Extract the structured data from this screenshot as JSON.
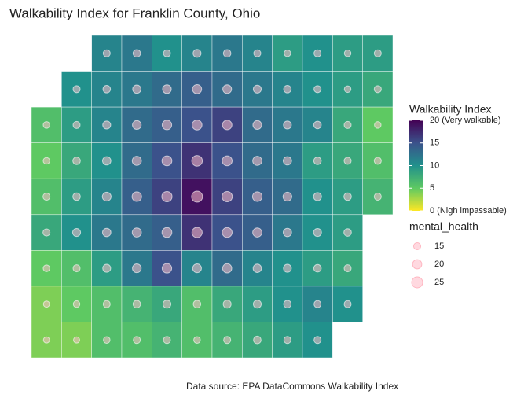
{
  "title": "Walkability Index for Franklin County, Ohio",
  "caption": "Data source: EPA DataCommons Walkability Index",
  "map": {
    "walkability": [
      [
        null,
        null,
        11,
        12,
        10,
        11,
        12,
        11,
        9,
        10,
        9,
        9
      ],
      [
        null,
        10,
        11,
        12,
        13,
        14,
        13,
        12,
        11,
        10,
        9,
        8
      ],
      [
        6,
        9,
        11,
        13,
        14,
        15,
        16,
        13,
        12,
        11,
        8,
        5
      ],
      [
        5,
        8,
        10,
        13,
        15,
        17,
        15,
        13,
        12,
        9,
        8,
        6
      ],
      [
        6,
        9,
        11,
        14,
        16,
        19,
        16,
        14,
        13,
        10,
        9,
        7
      ],
      [
        8,
        10,
        12,
        13,
        14,
        17,
        15,
        14,
        12,
        10,
        9,
        null
      ],
      [
        5,
        6,
        9,
        12,
        15,
        11,
        13,
        11,
        10,
        9,
        8,
        null
      ],
      [
        4,
        5,
        6,
        7,
        8,
        6,
        8,
        9,
        10,
        11,
        10,
        null
      ],
      [
        4,
        4,
        6,
        6,
        7,
        6,
        7,
        8,
        9,
        10,
        null,
        null
      ]
    ],
    "mental_health": [
      [
        null,
        null,
        15,
        16,
        15,
        17,
        16,
        15,
        14,
        15,
        14,
        15
      ],
      [
        null,
        15,
        16,
        18,
        19,
        20,
        19,
        17,
        16,
        15,
        14,
        15
      ],
      [
        14,
        15,
        17,
        19,
        21,
        22,
        21,
        19,
        17,
        16,
        15,
        14
      ],
      [
        14,
        16,
        18,
        20,
        22,
        24,
        22,
        20,
        18,
        16,
        15,
        15
      ],
      [
        15,
        16,
        19,
        21,
        23,
        25,
        23,
        21,
        19,
        17,
        16,
        15
      ],
      [
        15,
        17,
        18,
        20,
        22,
        23,
        22,
        20,
        18,
        17,
        16,
        null
      ],
      [
        14,
        15,
        17,
        19,
        21,
        19,
        20,
        18,
        17,
        16,
        15,
        null
      ],
      [
        13,
        14,
        15,
        16,
        17,
        16,
        17,
        17,
        16,
        15,
        15,
        null
      ],
      [
        13,
        13,
        14,
        15,
        15,
        14,
        15,
        16,
        15,
        15,
        null,
        null
      ]
    ]
  },
  "color_legend": {
    "title": "Walkability Index",
    "lim": [
      0,
      20
    ],
    "colors": [
      "#fde725",
      "#5ec962",
      "#21918c",
      "#3b528b",
      "#440154"
    ],
    "ticks": [
      {
        "value": 20,
        "label": "20 (Very walkable)"
      },
      15,
      10,
      5,
      {
        "value": 0,
        "label": "0 (Nigh impassable)"
      }
    ]
  },
  "size_legend": {
    "title": "mental_health",
    "values": [
      15,
      20,
      25
    ]
  }
}
